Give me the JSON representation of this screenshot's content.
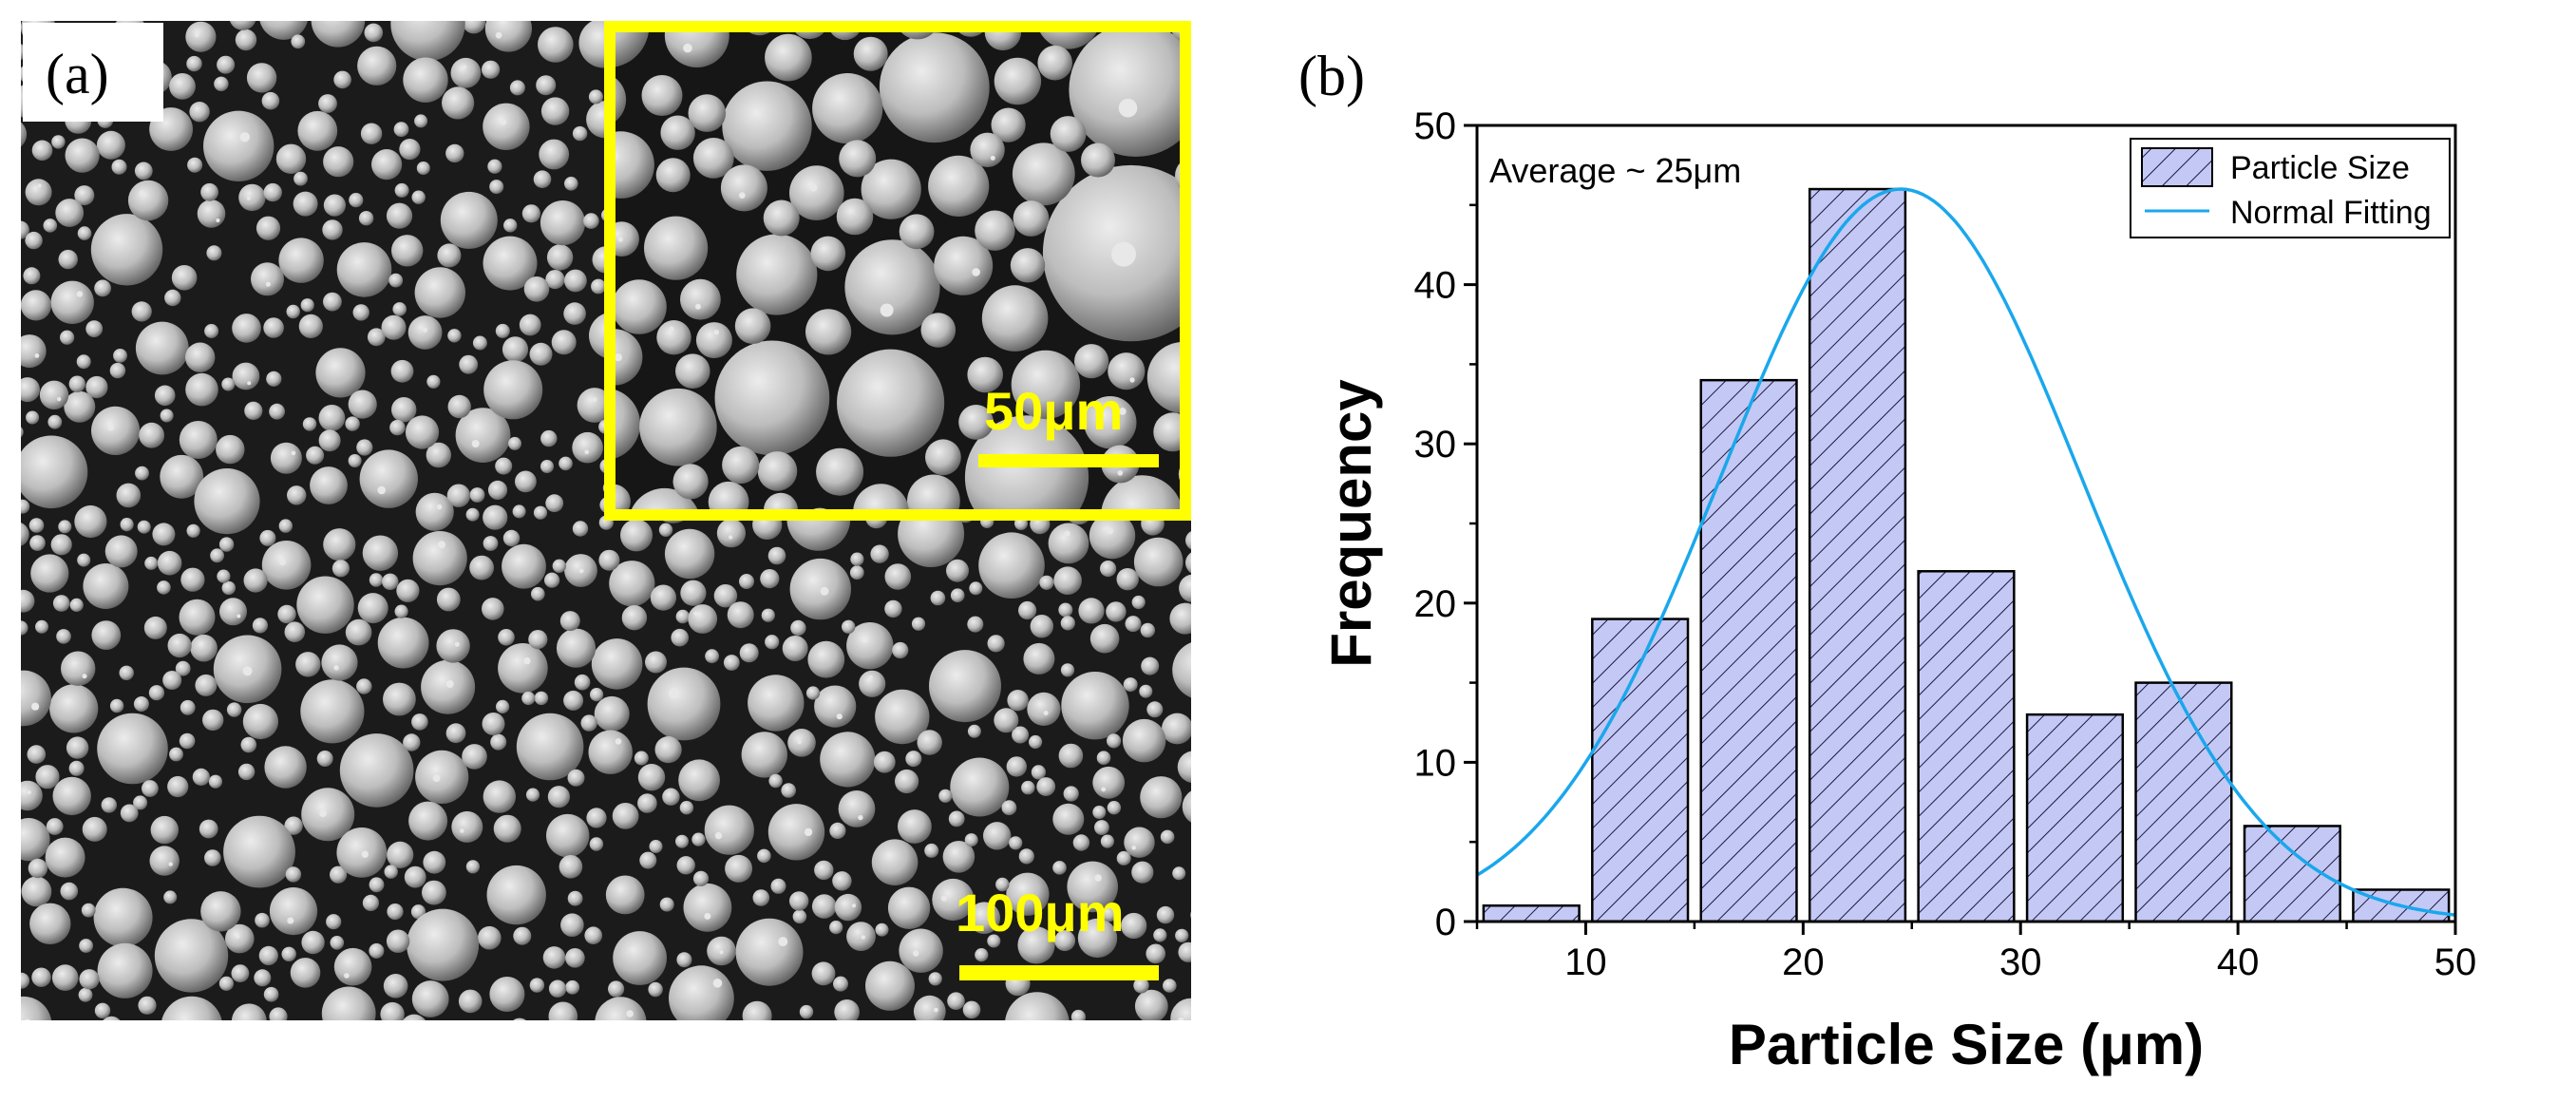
{
  "panel_a": {
    "label": "(a)",
    "inset_scale_bar": "50μm",
    "main_scale_bar": "100μm",
    "scale_bar_color": "#ffff00"
  },
  "panel_b": {
    "label": "(b)",
    "annotation": "Average ~ 25μm"
  },
  "chart_data": {
    "type": "bar",
    "xlabel": "Particle Size (μm)",
    "ylabel": "Frequency",
    "xlim": [
      5,
      50
    ],
    "ylim": [
      0,
      50
    ],
    "xticks": [
      10,
      20,
      30,
      40,
      50
    ],
    "yticks": [
      0,
      10,
      20,
      30,
      40,
      50
    ],
    "bin_width": 5,
    "series": [
      {
        "name": "Particle Size",
        "kind": "histogram",
        "bin_centers": [
          7.5,
          12.5,
          17.5,
          22.5,
          27.5,
          32.5,
          37.5,
          42.5,
          47.5
        ],
        "values": [
          1,
          19,
          34,
          46,
          22,
          13,
          15,
          6,
          2
        ],
        "fill": "#c4c8f4",
        "hatch": "#1a1a40"
      },
      {
        "name": "Normal Fitting",
        "kind": "line",
        "mean": 24.5,
        "sd": 8.3,
        "peak": 46,
        "color": "#1aa7ec"
      }
    ],
    "legend": {
      "position": "top-right"
    }
  }
}
